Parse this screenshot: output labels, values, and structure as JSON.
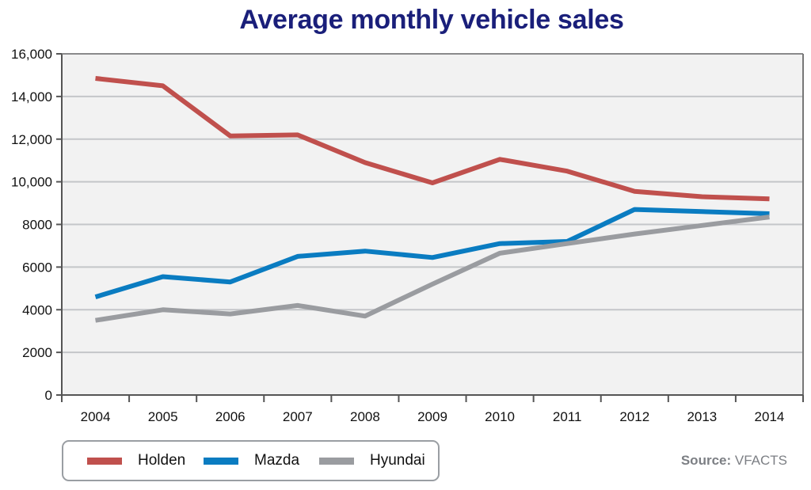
{
  "chart_data": {
    "type": "line",
    "title": "Average monthly vehicle sales",
    "xlabel": "",
    "ylabel": "",
    "categories": [
      "2004",
      "2005",
      "2006",
      "2007",
      "2008",
      "2009",
      "2010",
      "2011",
      "2012",
      "2013",
      "2014"
    ],
    "ylim": [
      0,
      16000
    ],
    "yticks": [
      0,
      2000,
      4000,
      6000,
      8000,
      10000,
      12000,
      14000,
      16000
    ],
    "ytick_labels": [
      "0",
      "2000",
      "4000",
      "6000",
      "8000",
      "10,000",
      "12,000",
      "14,000",
      "16,000"
    ],
    "grid": true,
    "legend_position": "bottom-left",
    "series": [
      {
        "name": "Holden",
        "color": "#c0504d",
        "values": [
          14850,
          14500,
          12150,
          12200,
          10900,
          9950,
          11050,
          10500,
          9550,
          9300,
          9200
        ]
      },
      {
        "name": "Mazda",
        "color": "#0a7cc1",
        "values": [
          4600,
          5550,
          5300,
          6500,
          6750,
          6450,
          7100,
          7200,
          8700,
          8600,
          8500
        ]
      },
      {
        "name": "Hyundai",
        "color": "#9a9ca0",
        "values": [
          3500,
          4000,
          3800,
          4200,
          3700,
          5200,
          6650,
          7100,
          7550,
          7950,
          8350
        ]
      }
    ],
    "source_prefix": "Source:",
    "source": "VFACTS"
  }
}
